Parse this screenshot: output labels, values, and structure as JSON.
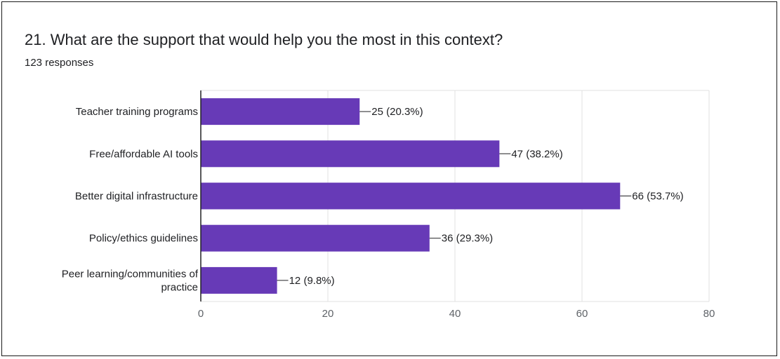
{
  "question": {
    "title": "21. What are the support that would help you the most in this context?",
    "responses": "123 responses"
  },
  "colors": {
    "bar": "#673ab7",
    "grid": "#e0e0e0",
    "axis": "#202124",
    "text": "#202124"
  },
  "chart_data": {
    "type": "bar",
    "orientation": "horizontal",
    "categories": [
      [
        "Teacher training programs"
      ],
      [
        "Free/affordable AI tools"
      ],
      [
        "Better digital infrastructure"
      ],
      [
        "Policy/ethics guidelines"
      ],
      [
        "Peer learning/communities of",
        "practice"
      ]
    ],
    "values": [
      25,
      47,
      66,
      36,
      12
    ],
    "data_labels": [
      "25 (20.3%)",
      "47 (38.2%)",
      "66 (53.7%)",
      "36 (29.3%)",
      "12 (9.8%)"
    ],
    "xlim": [
      0,
      80
    ],
    "xticks": [
      0,
      20,
      40,
      60,
      80
    ],
    "grid": true
  }
}
